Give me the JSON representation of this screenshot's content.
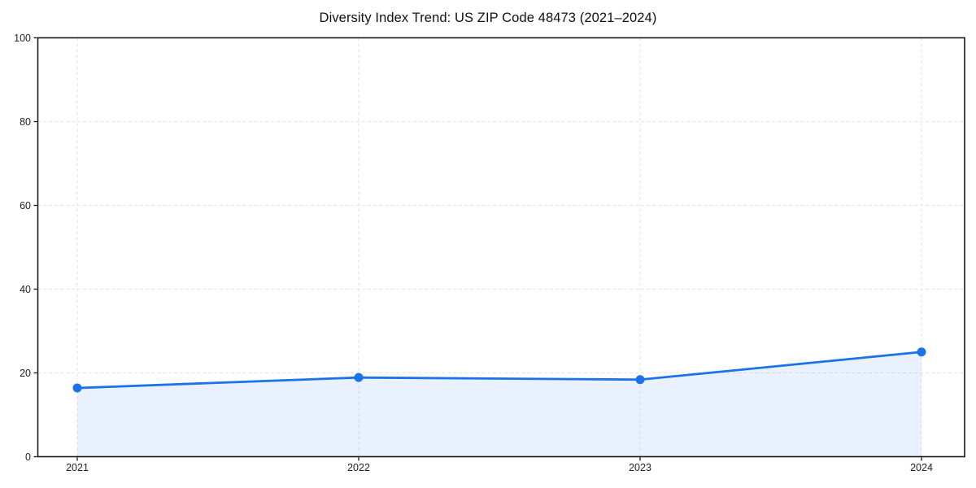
{
  "page": {
    "background": "#ffffff"
  },
  "chart_data": {
    "type": "line",
    "title": "Diversity Index Trend: US ZIP Code 48473 (2021–2024)",
    "x": [
      2021,
      2022,
      2023,
      2024
    ],
    "values": [
      16.4,
      18.9,
      18.4,
      25.0
    ],
    "xtick_labels": [
      "2021",
      "2022",
      "2023",
      "2024"
    ],
    "yticks": [
      0,
      20,
      40,
      60,
      80,
      100
    ],
    "ylim": [
      0,
      100
    ],
    "xlabel": "",
    "ylabel": "",
    "grid": "dashed",
    "legend": "none",
    "fill_area": true,
    "marker": "circle",
    "colors": {
      "line": "#1a73e8",
      "marker": "#1a73e8",
      "area_fill": "rgba(26,115,232,0.10)",
      "gridline": "#e2e2e2",
      "axis": "#1a1a1a",
      "tick_label": "#222222",
      "title": "#111111"
    }
  }
}
